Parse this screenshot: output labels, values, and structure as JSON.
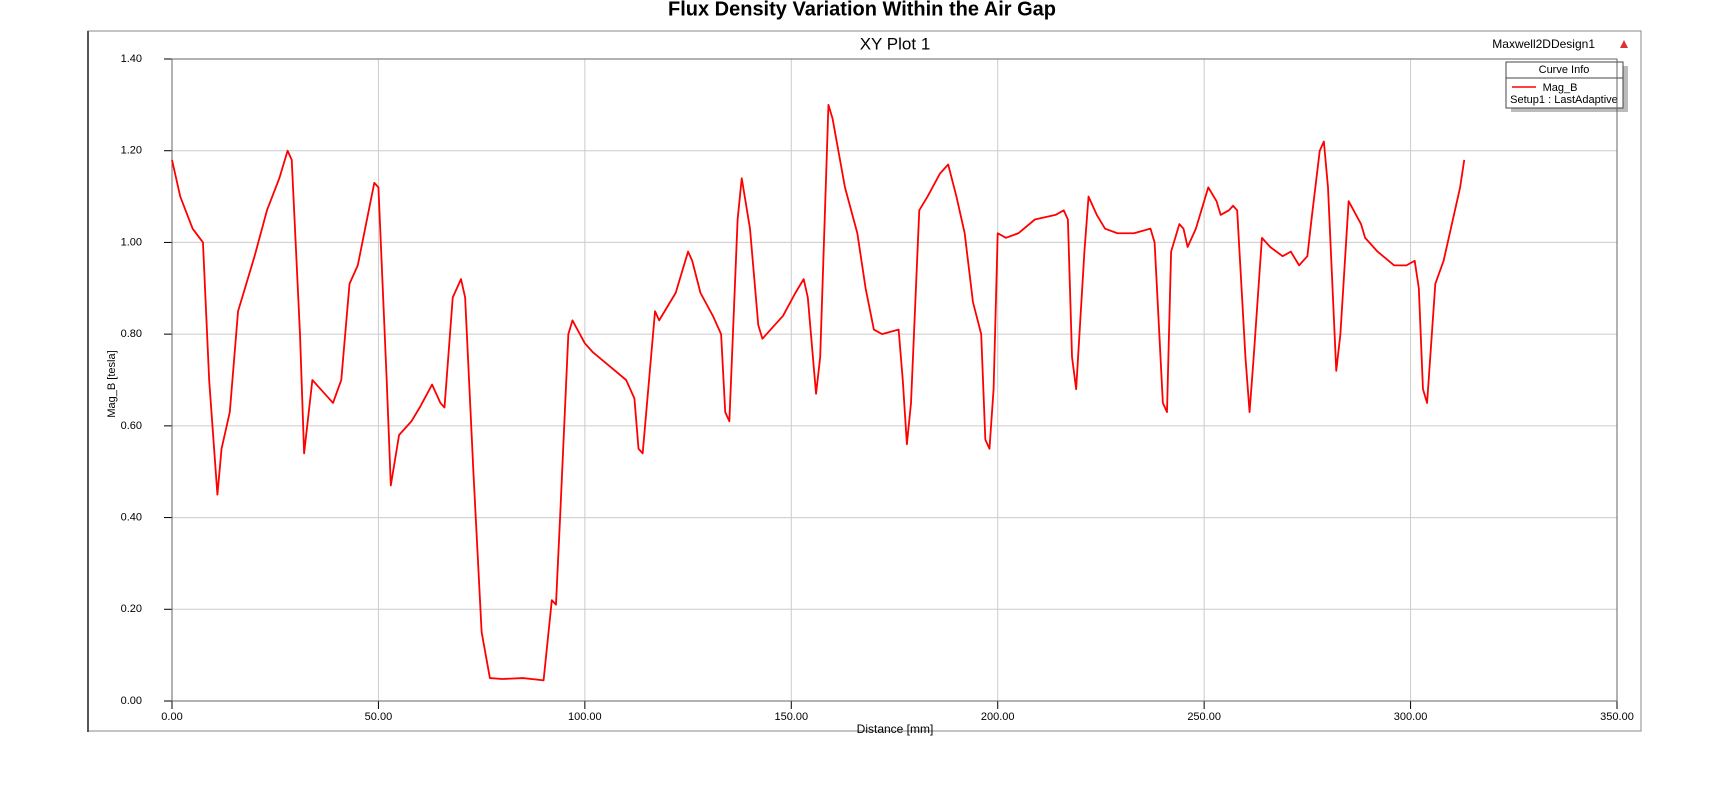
{
  "chart_data": {
    "type": "line",
    "title": "Flux Density Variation Within the Air Gap",
    "subtitle": "XY Plot 1",
    "design_name": "Maxwell2DDesign1",
    "legend_title": "Curve Info",
    "legend_position": "upper right",
    "x_label": "Distance [mm]",
    "y_label": "Mag_B [tesla]",
    "grid": true,
    "xlim": [
      0,
      350
    ],
    "ylim": [
      0,
      1.4
    ],
    "xticks": [
      {
        "value": 0,
        "label": "0.00"
      },
      {
        "value": 50,
        "label": "50.00"
      },
      {
        "value": 100,
        "label": "100.00"
      },
      {
        "value": 150,
        "label": "150.00"
      },
      {
        "value": 200,
        "label": "200.00"
      },
      {
        "value": 250,
        "label": "250.00"
      },
      {
        "value": 300,
        "label": "300.00"
      },
      {
        "value": 350,
        "label": "350.00"
      }
    ],
    "yticks": [
      {
        "value": 0,
        "label": "0.00"
      },
      {
        "value": 0.2,
        "label": "0.20"
      },
      {
        "value": 0.4,
        "label": "0.40"
      },
      {
        "value": 0.6,
        "label": "0.60"
      },
      {
        "value": 0.8,
        "label": "0.80"
      },
      {
        "value": 1.0,
        "label": "1.00"
      },
      {
        "value": 1.2,
        "label": "1.20"
      },
      {
        "value": 1.4,
        "label": "1.40"
      }
    ],
    "x": [
      0,
      2,
      5,
      7.5,
      9,
      11,
      12,
      14,
      16,
      18,
      20,
      23,
      26,
      28,
      29,
      31,
      32,
      34,
      36,
      39,
      41,
      43,
      45,
      47,
      49,
      50,
      52,
      53,
      55,
      58,
      60,
      63,
      65,
      66,
      68,
      70,
      71,
      73,
      75,
      77,
      80,
      85,
      89,
      90,
      92,
      93,
      94,
      96,
      97,
      100,
      102,
      106,
      110,
      112,
      113,
      114,
      117,
      118,
      122,
      125,
      126,
      128,
      131,
      133,
      134,
      135,
      137,
      138,
      140,
      142,
      143,
      145,
      148,
      151,
      153,
      154,
      156,
      157,
      159,
      160,
      163,
      166,
      168,
      170,
      172,
      176,
      177,
      178,
      179,
      181,
      183,
      186,
      188,
      190,
      192,
      194,
      196,
      197,
      198,
      199,
      200,
      202,
      205,
      209,
      214,
      216,
      217,
      218,
      219,
      221,
      222,
      224,
      226,
      229,
      233,
      237,
      238,
      240,
      241,
      242,
      244,
      245,
      246,
      248,
      251,
      253,
      254,
      256,
      257,
      258,
      260,
      261,
      262,
      264,
      266,
      269,
      271,
      273,
      275,
      276,
      278,
      279,
      280,
      282,
      283,
      285,
      288,
      289,
      292,
      296,
      299,
      301,
      302,
      303,
      304,
      305,
      306,
      308,
      310,
      312,
      313
    ],
    "series": [
      {
        "name": "Mag_B",
        "label": "Setup1 : LastAdaptive",
        "color": "#ff0000",
        "values": [
          1.18,
          1.1,
          1.03,
          1.0,
          0.7,
          0.45,
          0.55,
          0.63,
          0.85,
          0.91,
          0.97,
          1.07,
          1.14,
          1.2,
          1.18,
          0.8,
          0.54,
          0.7,
          0.68,
          0.65,
          0.7,
          0.91,
          0.95,
          1.04,
          1.13,
          1.12,
          0.7,
          0.47,
          0.58,
          0.61,
          0.64,
          0.69,
          0.65,
          0.64,
          0.88,
          0.92,
          0.88,
          0.5,
          0.15,
          0.05,
          0.048,
          0.05,
          0.046,
          0.045,
          0.22,
          0.21,
          0.4,
          0.8,
          0.83,
          0.78,
          0.76,
          0.73,
          0.7,
          0.66,
          0.55,
          0.54,
          0.85,
          0.83,
          0.89,
          0.98,
          0.96,
          0.89,
          0.84,
          0.8,
          0.63,
          0.61,
          1.05,
          1.14,
          1.03,
          0.82,
          0.79,
          0.81,
          0.84,
          0.89,
          0.92,
          0.88,
          0.67,
          0.75,
          1.3,
          1.27,
          1.12,
          1.02,
          0.9,
          0.81,
          0.8,
          0.81,
          0.7,
          0.56,
          0.65,
          1.07,
          1.1,
          1.15,
          1.17,
          1.1,
          1.02,
          0.87,
          0.8,
          0.57,
          0.55,
          0.68,
          1.02,
          1.01,
          1.02,
          1.05,
          1.06,
          1.07,
          1.05,
          0.75,
          0.68,
          0.98,
          1.1,
          1.06,
          1.03,
          1.02,
          1.02,
          1.03,
          1.0,
          0.65,
          0.63,
          0.98,
          1.04,
          1.03,
          0.99,
          1.03,
          1.12,
          1.09,
          1.06,
          1.07,
          1.08,
          1.07,
          0.75,
          0.63,
          0.75,
          1.01,
          0.99,
          0.97,
          0.98,
          0.95,
          0.97,
          1.05,
          1.2,
          1.22,
          1.12,
          0.72,
          0.8,
          1.09,
          1.04,
          1.01,
          0.98,
          0.95,
          0.95,
          0.96,
          0.9,
          0.68,
          0.65,
          0.78,
          0.91,
          0.96,
          1.04,
          1.12,
          1.18
        ]
      }
    ]
  }
}
